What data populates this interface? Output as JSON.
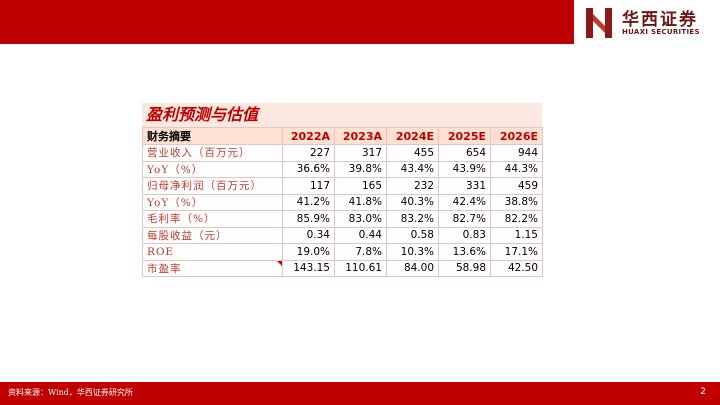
{
  "brand": {
    "name_cn": "华西证券",
    "name_en": "HUAXI SECURITIES"
  },
  "table": {
    "title": "盈利预测与估值",
    "header": [
      "财务摘要",
      "2022A",
      "2023A",
      "2024E",
      "2025E",
      "2026E"
    ],
    "rows": [
      {
        "label": "营业收入（百万元）",
        "values": [
          "227",
          "317",
          "455",
          "654",
          "944"
        ]
      },
      {
        "label": "YoY（%）",
        "values": [
          "36.6%",
          "39.8%",
          "43.4%",
          "43.9%",
          "44.3%"
        ]
      },
      {
        "label": "归母净利润（百万元）",
        "values": [
          "117",
          "165",
          "232",
          "331",
          "459"
        ]
      },
      {
        "label": "YoY（%）",
        "values": [
          "41.2%",
          "41.8%",
          "40.3%",
          "42.4%",
          "38.8%"
        ]
      },
      {
        "label": "毛利率（%）",
        "values": [
          "85.9%",
          "83.0%",
          "83.2%",
          "82.7%",
          "82.2%"
        ]
      },
      {
        "label": "每股收益（元）",
        "values": [
          "0.34",
          "0.44",
          "0.58",
          "0.83",
          "1.15"
        ]
      },
      {
        "label": "ROE",
        "values": [
          "19.0%",
          "7.8%",
          "10.3%",
          "13.6%",
          "17.1%"
        ]
      },
      {
        "label": "市盈率",
        "values": [
          "143.15",
          "110.61",
          "84.00",
          "58.98",
          "42.50"
        ]
      }
    ]
  },
  "footer": {
    "source": "资料来源：Wind，华西证券研究所",
    "page": "2"
  },
  "colors": {
    "brand_red": "#c00000",
    "header_fill": "#ffe1d2",
    "title_fill": "#fbe9e1"
  }
}
